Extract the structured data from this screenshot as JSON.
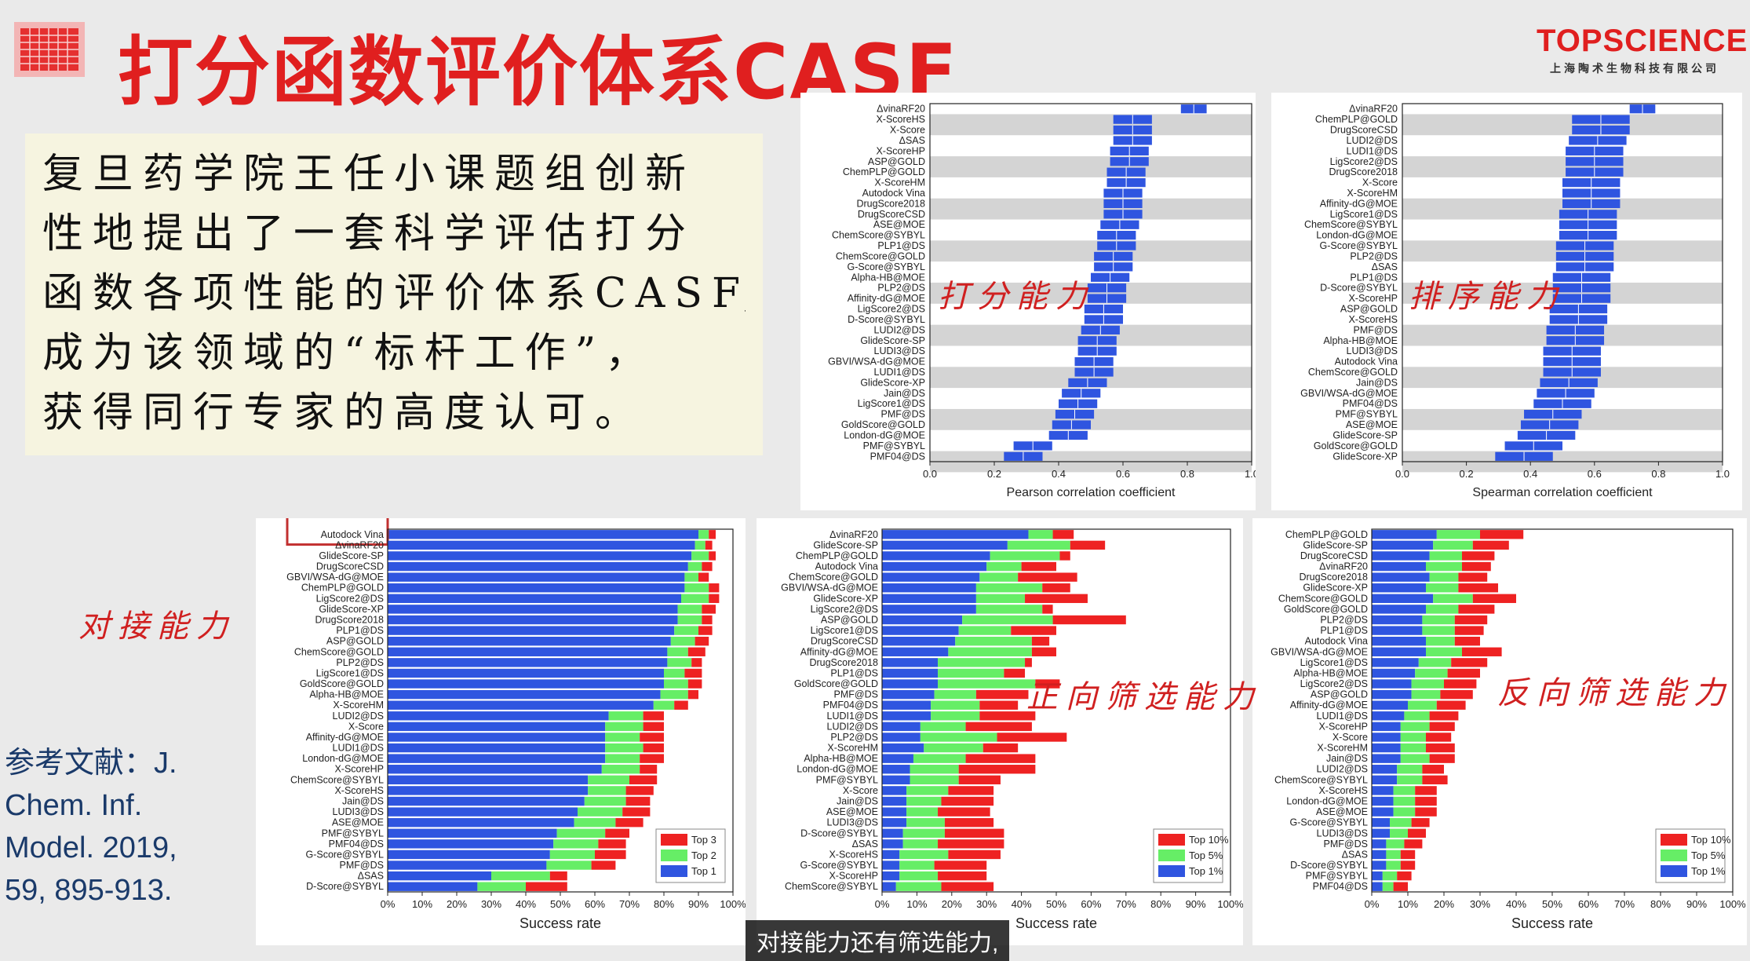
{
  "title": "打分函数评价体系CASF",
  "logo": {
    "main": "TOPSCIENCE",
    "sub": "上海陶术生物科技有限公司"
  },
  "intro_lines": [
    "复旦药学院王任小课题组创新",
    "性地提出了一套科学评估打分",
    "函数各项性能的评价体系CASF,",
    "成为该领域的“标杆工作”，",
    "获得同行专家的高度认可。"
  ],
  "reference": [
    "参考文献：J.",
    "Chem. Inf.",
    "Model. 2019,",
    "59, 895-913."
  ],
  "subtitle": "对接能力还有筛选能力,",
  "annotations": {
    "scoring": "打分能力",
    "ranking": "排序能力",
    "docking": "对接能力",
    "forward": "正向筛选能力",
    "reverse": "反向筛选能力"
  },
  "colors": {
    "blue": "#2f55e0",
    "green": "#66ee66",
    "red": "#ee2222",
    "band": "#d4d4d4"
  },
  "chart_data": [
    {
      "id": "pearson",
      "type": "bar",
      "orientation": "horizontal",
      "xlabel": "Pearson correlation coefficient",
      "xlim": [
        0.0,
        1.0
      ],
      "xticks": [
        "0.0",
        "0.2",
        "0.4",
        "0.6",
        "0.8",
        "1.0"
      ],
      "categories": [
        "ΔvinaRF20",
        "X-ScoreHS",
        "X-Score",
        "ΔSAS",
        "X-ScoreHP",
        "ASP@GOLD",
        "ChemPLP@GOLD",
        "X-ScoreHM",
        "Autodock Vina",
        "DrugScore2018",
        "DrugScoreCSD",
        "ASE@MOE",
        "ChemScore@SYBYL",
        "PLP1@DS",
        "ChemScore@GOLD",
        "G-Score@SYBYL",
        "Alpha-HB@MOE",
        "PLP2@DS",
        "Affinity-dG@MOE",
        "LigScore2@DS",
        "D-Score@SYBYL",
        "LUDI2@DS",
        "GlideScore-SP",
        "LUDI3@DS",
        "GBVI/WSA-dG@MOE",
        "LUDI1@DS",
        "GlideScore-XP",
        "Jain@DS",
        "LigScore1@DS",
        "PMF@DS",
        "GoldScore@GOLD",
        "London-dG@MOE",
        "PMF@SYBYL",
        "PMF04@DS"
      ],
      "values": [
        0.82,
        0.63,
        0.63,
        0.63,
        0.62,
        0.62,
        0.61,
        0.61,
        0.6,
        0.6,
        0.6,
        0.59,
        0.58,
        0.58,
        0.57,
        0.57,
        0.56,
        0.55,
        0.55,
        0.54,
        0.54,
        0.53,
        0.52,
        0.52,
        0.51,
        0.51,
        0.49,
        0.47,
        0.46,
        0.45,
        0.44,
        0.43,
        0.32,
        0.29
      ],
      "errors": [
        0.04,
        0.06,
        0.06,
        0.06,
        0.06,
        0.06,
        0.06,
        0.06,
        0.06,
        0.06,
        0.06,
        0.06,
        0.06,
        0.06,
        0.06,
        0.06,
        0.06,
        0.06,
        0.06,
        0.06,
        0.06,
        0.06,
        0.06,
        0.06,
        0.06,
        0.06,
        0.06,
        0.06,
        0.06,
        0.06,
        0.06,
        0.06,
        0.06,
        0.06
      ]
    },
    {
      "id": "spearman",
      "type": "bar",
      "orientation": "horizontal",
      "xlabel": "Spearman correlation coefficient",
      "xlim": [
        0.0,
        1.0
      ],
      "xticks": [
        "0.0",
        "0.2",
        "0.4",
        "0.6",
        "0.8",
        "1.0"
      ],
      "categories": [
        "ΔvinaRF20",
        "ChemPLP@GOLD",
        "DrugScoreCSD",
        "LUDI2@DS",
        "LUDI1@DS",
        "LigScore2@DS",
        "DrugScore2018",
        "X-Score",
        "X-ScoreHM",
        "Affinity-dG@MOE",
        "LigScore1@DS",
        "ChemScore@SYBYL",
        "London-dG@MOE",
        "G-Score@SYBYL",
        "PLP2@DS",
        "ΔSAS",
        "PLP1@DS",
        "D-Score@SYBYL",
        "X-ScoreHP",
        "ASP@GOLD",
        "X-ScoreHS",
        "PMF@DS",
        "Alpha-HB@MOE",
        "LUDI3@DS",
        "Autodock Vina",
        "ChemScore@GOLD",
        "Jain@DS",
        "GBVI/WSA-dG@MOE",
        "PMF04@DS",
        "PMF@SYBYL",
        "ASE@MOE",
        "GlideScore-SP",
        "GoldScore@GOLD",
        "GlideScore-XP"
      ],
      "values": [
        0.75,
        0.62,
        0.62,
        0.61,
        0.6,
        0.6,
        0.6,
        0.59,
        0.59,
        0.59,
        0.58,
        0.58,
        0.58,
        0.57,
        0.57,
        0.57,
        0.56,
        0.56,
        0.56,
        0.55,
        0.55,
        0.54,
        0.54,
        0.53,
        0.53,
        0.53,
        0.52,
        0.51,
        0.5,
        0.47,
        0.46,
        0.45,
        0.41,
        0.38
      ],
      "errors": [
        0.04,
        0.09,
        0.09,
        0.09,
        0.09,
        0.09,
        0.09,
        0.09,
        0.09,
        0.09,
        0.09,
        0.09,
        0.09,
        0.09,
        0.09,
        0.09,
        0.09,
        0.09,
        0.09,
        0.09,
        0.09,
        0.09,
        0.09,
        0.09,
        0.09,
        0.09,
        0.09,
        0.09,
        0.09,
        0.09,
        0.09,
        0.09,
        0.09,
        0.09
      ]
    },
    {
      "id": "docking",
      "type": "bar",
      "orientation": "horizontal",
      "stacked": true,
      "xlabel": "Success rate",
      "xlim": [
        0,
        100
      ],
      "xticks": [
        "0%",
        "10%",
        "20%",
        "30%",
        "40%",
        "50%",
        "60%",
        "70%",
        "80%",
        "90%",
        "100%"
      ],
      "highlighted": "Autodock Vina",
      "categories": [
        "Autodock Vina",
        "ΔvinaRF20",
        "GlideScore-SP",
        "DrugScoreCSD",
        "GBVI/WSA-dG@MOE",
        "ChemPLP@GOLD",
        "LigScore2@DS",
        "GlideScore-XP",
        "DrugScore2018",
        "PLP1@DS",
        "ASP@GOLD",
        "ChemScore@GOLD",
        "PLP2@DS",
        "LigScore1@DS",
        "GoldScore@GOLD",
        "Alpha-HB@MOE",
        "X-ScoreHM",
        "LUDI2@DS",
        "X-Score",
        "Affinity-dG@MOE",
        "LUDI1@DS",
        "London-dG@MOE",
        "X-ScoreHP",
        "ChemScore@SYBYL",
        "X-ScoreHS",
        "Jain@DS",
        "LUDI3@DS",
        "ASE@MOE",
        "PMF@SYBYL",
        "PMF04@DS",
        "G-Score@SYBYL",
        "PMF@DS",
        "ΔSAS",
        "D-Score@SYBYL"
      ],
      "series": [
        {
          "name": "Top 1",
          "values": [
            90,
            89,
            88,
            87,
            86,
            86,
            85,
            84,
            84,
            83,
            82,
            81,
            81,
            80,
            80,
            79,
            77,
            64,
            63,
            63,
            63,
            63,
            62,
            58,
            58,
            57,
            55,
            54,
            49,
            48,
            47,
            46,
            30,
            26
          ]
        },
        {
          "name": "Top 2",
          "values": [
            3,
            3,
            5,
            4,
            4,
            7,
            8,
            7,
            7,
            7,
            7,
            6,
            7,
            6,
            7,
            8,
            6,
            10,
            11,
            10,
            11,
            10,
            11,
            12,
            11,
            12,
            13,
            12,
            14,
            13,
            13,
            13,
            17,
            14
          ]
        },
        {
          "name": "Top 3",
          "values": [
            2,
            2,
            2,
            3,
            3,
            3,
            3,
            4,
            3,
            4,
            4,
            5,
            3,
            5,
            4,
            3,
            4,
            6,
            6,
            7,
            6,
            7,
            5,
            8,
            8,
            7,
            8,
            8,
            7,
            8,
            9,
            7,
            5,
            12
          ]
        }
      ],
      "legend": [
        "Top 3",
        "Top 2",
        "Top 1"
      ],
      "legend_position": "bottom-right"
    },
    {
      "id": "forward",
      "type": "bar",
      "orientation": "horizontal",
      "stacked": true,
      "xlabel": "Success rate",
      "xlim": [
        0,
        100
      ],
      "xticks": [
        "0%",
        "10%",
        "20%",
        "30%",
        "40%",
        "50%",
        "60%",
        "70%",
        "80%",
        "90%",
        "100%"
      ],
      "categories": [
        "ΔvinaRF20",
        "GlideScore-SP",
        "ChemPLP@GOLD",
        "Autodock Vina",
        "ChemScore@GOLD",
        "GBVI/WSA-dG@MOE",
        "GlideScore-XP",
        "LigScore2@DS",
        "ASP@GOLD",
        "LigScore1@DS",
        "DrugScoreCSD",
        "Affinity-dG@MOE",
        "DrugScore2018",
        "PLP1@DS",
        "GoldScore@GOLD",
        "PMF@DS",
        "PMF04@DS",
        "LUDI1@DS",
        "LUDI2@DS",
        "PLP2@DS",
        "X-ScoreHM",
        "Alpha-HB@MOE",
        "London-dG@MOE",
        "PMF@SYBYL",
        "X-Score",
        "Jain@DS",
        "ASE@MOE",
        "LUDI3@DS",
        "D-Score@SYBYL",
        "ΔSAS",
        "X-ScoreHS",
        "G-Score@SYBYL",
        "X-ScoreHP",
        "ChemScore@SYBYL"
      ],
      "series": [
        {
          "name": "Top 1%",
          "values": [
            42,
            36,
            31,
            30,
            28,
            27,
            27,
            27,
            23,
            22,
            21,
            19,
            16,
            16,
            16,
            15,
            14,
            14,
            11,
            11,
            12,
            9,
            8,
            8,
            7,
            7,
            7,
            7,
            6,
            6,
            5,
            5,
            5,
            4
          ]
        },
        {
          "name": "Top 5%",
          "values": [
            7,
            18,
            20,
            10,
            11,
            19,
            14,
            19,
            26,
            15,
            22,
            24,
            25,
            19,
            28,
            12,
            14,
            14,
            13,
            22,
            17,
            15,
            14,
            14,
            12,
            10,
            9,
            11,
            12,
            10,
            14,
            10,
            11,
            13
          ]
        },
        {
          "name": "Top 10%",
          "values": [
            6,
            10,
            3,
            10,
            17,
            8,
            18,
            3,
            21,
            13,
            5,
            7,
            2,
            6,
            7,
            15,
            11,
            16,
            19,
            20,
            10,
            20,
            22,
            12,
            13,
            15,
            15,
            14,
            17,
            19,
            15,
            15,
            14,
            15
          ]
        }
      ],
      "legend": [
        "Top 10%",
        "Top 5%",
        "Top 1%"
      ],
      "legend_position": "bottom-right"
    },
    {
      "id": "reverse",
      "type": "bar",
      "orientation": "horizontal",
      "stacked": true,
      "xlabel": "Success rate",
      "xlim": [
        0,
        100
      ],
      "xticks": [
        "0%",
        "10%",
        "20%",
        "30%",
        "40%",
        "50%",
        "60%",
        "70%",
        "80%",
        "90%",
        "100%"
      ],
      "categories": [
        "ChemPLP@GOLD",
        "GlideScore-SP",
        "DrugScoreCSD",
        "ΔvinaRF20",
        "DrugScore2018",
        "GlideScore-XP",
        "ChemScore@GOLD",
        "GoldScore@GOLD",
        "PLP2@DS",
        "PLP1@DS",
        "Autodock Vina",
        "GBVI/WSA-dG@MOE",
        "LigScore1@DS",
        "Alpha-HB@MOE",
        "LigScore2@DS",
        "ASP@GOLD",
        "Affinity-dG@MOE",
        "LUDI1@DS",
        "X-ScoreHP",
        "X-Score",
        "X-ScoreHM",
        "Jain@DS",
        "LUDI2@DS",
        "ChemScore@SYBYL",
        "X-ScoreHS",
        "London-dG@MOE",
        "ASE@MOE",
        "G-Score@SYBYL",
        "LUDI3@DS",
        "PMF@DS",
        "ΔSAS",
        "D-Score@SYBYL",
        "PMF@SYBYL",
        "PMF04@DS"
      ],
      "series": [
        {
          "name": "Top 1%",
          "values": [
            18,
            17,
            16,
            15,
            16,
            15,
            17,
            15,
            14,
            14,
            15,
            15,
            13,
            12,
            11,
            11,
            10,
            9,
            8,
            8,
            8,
            8,
            7,
            7,
            6,
            6,
            6,
            5,
            5,
            4,
            4,
            4,
            3,
            3
          ]
        },
        {
          "name": "Top 5%",
          "values": [
            12,
            11,
            9,
            10,
            8,
            9,
            11,
            9,
            9,
            9,
            8,
            10,
            9,
            9,
            9,
            8,
            8,
            7,
            8,
            7,
            7,
            8,
            7,
            7,
            6,
            6,
            6,
            6,
            5,
            5,
            4,
            4,
            4,
            3
          ]
        },
        {
          "name": "Top 10%",
          "values": [
            12,
            10,
            9,
            8,
            8,
            11,
            12,
            10,
            9,
            8,
            7,
            11,
            10,
            9,
            9,
            9,
            8,
            8,
            7,
            7,
            8,
            7,
            6,
            7,
            6,
            6,
            6,
            5,
            5,
            5,
            4,
            4,
            4,
            4
          ]
        }
      ],
      "legend": [
        "Top 10%",
        "Top 5%",
        "Top 1%"
      ],
      "legend_position": "bottom-right"
    }
  ]
}
